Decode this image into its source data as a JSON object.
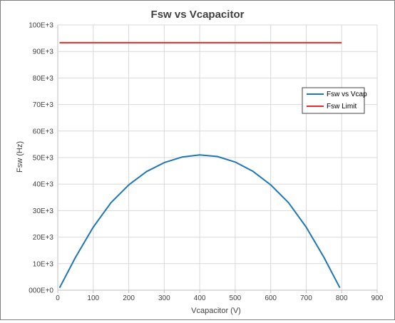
{
  "chart_data": {
    "type": "line",
    "title": "Fsw vs Vcapacitor",
    "xlabel": "Vcapacitor (V)",
    "ylabel": "Fsw (Hz)",
    "xlim": [
      0,
      900
    ],
    "ylim": [
      0,
      100000
    ],
    "x_ticks": [
      0,
      100,
      200,
      300,
      400,
      500,
      600,
      700,
      800,
      900
    ],
    "x_tick_labels": [
      "0",
      "100",
      "200",
      "300",
      "400",
      "500",
      "600",
      "700",
      "800",
      "900"
    ],
    "y_ticks": [
      0,
      10000,
      20000,
      30000,
      40000,
      50000,
      60000,
      70000,
      80000,
      90000,
      100000
    ],
    "y_tick_labels": [
      "000E+0",
      "10E+3",
      "20E+3",
      "30E+3",
      "40E+3",
      "50E+3",
      "60E+3",
      "70E+3",
      "80E+3",
      "90E+3",
      "100E+3"
    ],
    "grid": true,
    "legend_position": "right",
    "series": [
      {
        "name": "Fsw vs Vcap",
        "color": "#1f77b4",
        "x": [
          5,
          50,
          100,
          150,
          200,
          250,
          300,
          350,
          400,
          450,
          500,
          550,
          600,
          650,
          700,
          750,
          795
        ],
        "y": [
          900,
          12400,
          23800,
          33000,
          39700,
          44700,
          48100,
          50200,
          51000,
          50400,
          48300,
          44800,
          39700,
          33000,
          23800,
          12400,
          900
        ]
      },
      {
        "name": "Fsw Limit",
        "color": "#e32d2d",
        "x": [
          5,
          800
        ],
        "y": [
          93300,
          93300
        ]
      }
    ]
  }
}
